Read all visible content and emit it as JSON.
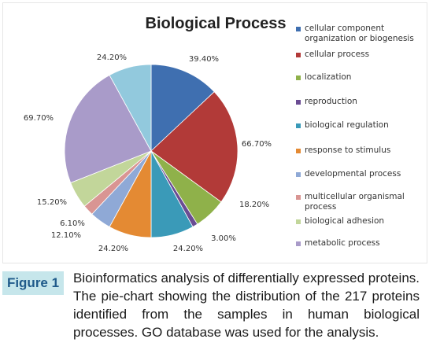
{
  "caption": {
    "figure_label": "Figure 1",
    "text": "Bioinformatics analysis of differentially expressed proteins. The pie-chart showing the distribution of the 217 proteins identified from the samples in human biological processes. GO database was used for the analysis."
  },
  "chart_data": {
    "type": "pie",
    "title": "Biological Process",
    "legend_position": "right",
    "slices": [
      {
        "name": "cellular component organization or biogenesis",
        "label": "39.40%",
        "value": 39.4,
        "color": "#3f6fb0"
      },
      {
        "name": "cellular process",
        "label": "66.70%",
        "value": 66.7,
        "color": "#b23a38"
      },
      {
        "name": "localization",
        "label": "18.20%",
        "value": 18.2,
        "color": "#8fb14a"
      },
      {
        "name": "reproduction",
        "label": "3.00%",
        "value": 3.0,
        "color": "#6a4c93"
      },
      {
        "name": "biological regulation",
        "label": "24.20%",
        "value": 24.2,
        "color": "#3a9ab8"
      },
      {
        "name": "response to stimulus",
        "label": "24.20%",
        "value": 24.2,
        "color": "#e48a33"
      },
      {
        "name": "developmental process",
        "label": "12.10%",
        "value": 12.1,
        "color": "#8fa9d6"
      },
      {
        "name": "multicellular organismal process",
        "label": "6.10%",
        "value": 6.1,
        "color": "#d99593"
      },
      {
        "name": "biological adhesion",
        "label": "15.20%",
        "value": 15.2,
        "color": "#c2d69a"
      },
      {
        "name": "metabolic process",
        "label": "69.70%",
        "value": 69.7,
        "color": "#a99bc9"
      },
      {
        "name": "",
        "label": "24.20%",
        "value": 24.2,
        "color": "#92c9dd"
      }
    ]
  }
}
